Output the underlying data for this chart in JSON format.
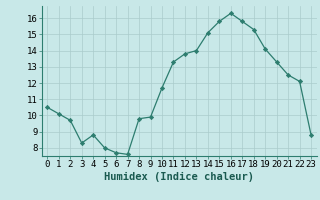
{
  "x": [
    0,
    1,
    2,
    3,
    4,
    5,
    6,
    7,
    8,
    9,
    10,
    11,
    12,
    13,
    14,
    15,
    16,
    17,
    18,
    19,
    20,
    21,
    22,
    23
  ],
  "y": [
    10.5,
    10.1,
    9.7,
    8.3,
    8.8,
    8.0,
    7.7,
    7.6,
    9.8,
    9.9,
    11.7,
    13.3,
    13.8,
    14.0,
    15.1,
    15.8,
    16.3,
    15.8,
    15.3,
    14.1,
    13.3,
    12.5,
    12.1,
    8.8
  ],
  "line_color": "#2d7d6f",
  "marker_color": "#2d7d6f",
  "bg_color": "#c8e8e8",
  "grid_color": "#aacccc",
  "xlabel": "Humidex (Indice chaleur)",
  "xlim": [
    -0.5,
    23.5
  ],
  "ylim": [
    7.5,
    16.75
  ],
  "yticks": [
    8,
    9,
    10,
    11,
    12,
    13,
    14,
    15,
    16
  ],
  "xticks": [
    0,
    1,
    2,
    3,
    4,
    5,
    6,
    7,
    8,
    9,
    10,
    11,
    12,
    13,
    14,
    15,
    16,
    17,
    18,
    19,
    20,
    21,
    22,
    23
  ],
  "label_fontsize": 7,
  "tick_fontsize": 6.5,
  "xlabel_fontsize": 7.5
}
